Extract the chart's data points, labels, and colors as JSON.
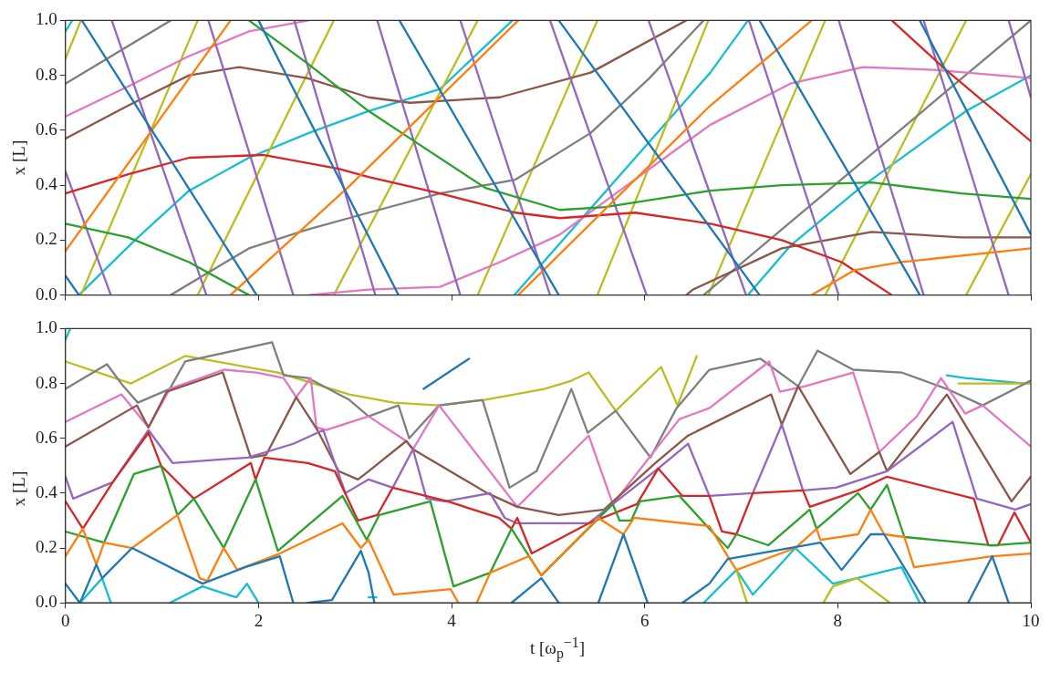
{
  "chart_data": [
    {
      "type": "line",
      "ylabel": "x [L]",
      "xlim": [
        0,
        10
      ],
      "ylim": [
        0,
        1
      ],
      "xticks": [
        0,
        2,
        4,
        6,
        8,
        10
      ],
      "yticks": [
        {
          "value": 0,
          "label": "0.0"
        },
        {
          "value": 0.2,
          "label": "0.2"
        },
        {
          "value": 0.4,
          "label": "0.4"
        },
        {
          "value": 0.6,
          "label": "0.6"
        },
        {
          "value": 0.8,
          "label": "0.8"
        },
        {
          "value": 1,
          "label": "1.0"
        }
      ],
      "tick_labels": "y",
      "series": [
        {
          "color": "#1f77b4",
          "x": [
            0,
            0.14
          ],
          "values": [
            0.07,
            0
          ]
        },
        {
          "color": "#1f77b4",
          "x": [
            0.17,
            1.98
          ],
          "values": [
            1,
            0
          ]
        },
        {
          "color": "#1f77b4",
          "x": [
            2.0,
            3.45
          ],
          "values": [
            1,
            0
          ]
        },
        {
          "color": "#1f77b4",
          "x": [
            3.46,
            5.11
          ],
          "values": [
            1,
            0
          ]
        },
        {
          "color": "#1f77b4",
          "x": [
            5.11,
            7.19
          ],
          "values": [
            1,
            0
          ]
        },
        {
          "color": "#1f77b4",
          "x": [
            7.19,
            8.85
          ],
          "values": [
            1,
            0
          ]
        },
        {
          "color": "#1f77b4",
          "x": [
            8.85,
            10
          ],
          "values": [
            1,
            0.22
          ]
        },
        {
          "color": "#ff7f0e",
          "x": [
            0,
            1.71
          ],
          "values": [
            0.16,
            1
          ]
        },
        {
          "color": "#ff7f0e",
          "x": [
            1.71,
            2.95,
            4.69
          ],
          "values": [
            0,
            0.4,
            1
          ]
        },
        {
          "color": "#ff7f0e",
          "x": [
            4.69,
            6.68,
            7.73
          ],
          "values": [
            0,
            0.69,
            1
          ]
        },
        {
          "color": "#ff7f0e",
          "x": [
            7.73,
            8.17,
            8.66,
            10
          ],
          "values": [
            0,
            0.09,
            0.12,
            0.17
          ]
        },
        {
          "color": "#2ca02c",
          "x": [
            0,
            0.65,
            1.28,
            1.9
          ],
          "values": [
            0.26,
            0.21,
            0.12,
            0
          ]
        },
        {
          "color": "#2ca02c",
          "x": [
            1.9,
            2.52,
            3.14,
            3.57,
            4.35,
            5.12,
            5.59,
            6.68,
            7.42,
            8.35,
            9.28,
            10
          ],
          "values": [
            1,
            0.84,
            0.67,
            0.57,
            0.39,
            0.31,
            0.32,
            0.38,
            0.4,
            0.41,
            0.37,
            0.35
          ]
        },
        {
          "color": "#d62728",
          "x": [
            0,
            0.65,
            1.28,
            2.05,
            2.83,
            3.14,
            3.88,
            4.66,
            5.12,
            5.9,
            6.68,
            7.42,
            8.04,
            8.56
          ],
          "values": [
            0.37,
            0.44,
            0.5,
            0.51,
            0.46,
            0.43,
            0.37,
            0.3,
            0.28,
            0.3,
            0.26,
            0.2,
            0.12,
            0
          ]
        },
        {
          "color": "#d62728",
          "x": [
            8.56,
            9.12,
            10
          ],
          "values": [
            1,
            0.82,
            0.56
          ]
        },
        {
          "color": "#9467bd",
          "x": [
            0,
            0.47
          ],
          "values": [
            0.45,
            0
          ]
        },
        {
          "color": "#9467bd",
          "x": [
            0.48,
            1.46
          ],
          "values": [
            1,
            0
          ]
        },
        {
          "color": "#9467bd",
          "x": [
            1.48,
            2.36
          ],
          "values": [
            1,
            0
          ]
        },
        {
          "color": "#9467bd",
          "x": [
            2.37,
            3.21
          ],
          "values": [
            1,
            0
          ]
        },
        {
          "color": "#9467bd",
          "x": [
            3.23,
            4.09
          ],
          "values": [
            1,
            0
          ]
        },
        {
          "color": "#9467bd",
          "x": [
            4.09,
            5.02
          ],
          "values": [
            1,
            0
          ]
        },
        {
          "color": "#9467bd",
          "x": [
            5.02,
            6.02
          ],
          "values": [
            1,
            0
          ]
        },
        {
          "color": "#9467bd",
          "x": [
            6.04,
            7.05
          ],
          "values": [
            1,
            0
          ]
        },
        {
          "color": "#9467bd",
          "x": [
            7.08,
            8.01
          ],
          "values": [
            1,
            0
          ]
        },
        {
          "color": "#9467bd",
          "x": [
            8.01,
            8.89
          ],
          "values": [
            1,
            0
          ]
        },
        {
          "color": "#9467bd",
          "x": [
            8.89,
            9.77
          ],
          "values": [
            1,
            0
          ]
        },
        {
          "color": "#9467bd",
          "x": [
            9.77,
            10
          ],
          "values": [
            1,
            0.72
          ]
        },
        {
          "color": "#8c564b",
          "x": [
            0,
            0.65,
            1.28,
            1.8,
            2.5,
            3.14,
            3.57,
            4.5,
            5.44,
            6.43
          ],
          "values": [
            0.57,
            0.69,
            0.8,
            0.83,
            0.79,
            0.72,
            0.7,
            0.72,
            0.81,
            1
          ]
        },
        {
          "color": "#8c564b",
          "x": [
            6.43,
            6.5,
            7.42,
            8.35,
            9.28,
            10
          ],
          "values": [
            0,
            0.02,
            0.17,
            0.23,
            0.21,
            0.21
          ]
        },
        {
          "color": "#e377c2",
          "x": [
            0,
            0.65,
            1.28,
            1.9,
            2.52
          ],
          "values": [
            0.65,
            0.76,
            0.87,
            0.96,
            1
          ]
        },
        {
          "color": "#e377c2",
          "x": [
            2.52,
            3.14,
            3.88,
            4.5,
            5.12,
            5.74,
            6.68,
            7.51,
            8.26,
            9.0,
            10
          ],
          "values": [
            0,
            0.02,
            0.03,
            0.12,
            0.22,
            0.38,
            0.62,
            0.77,
            0.83,
            0.82,
            0.79
          ]
        },
        {
          "color": "#7f7f7f",
          "x": [
            0,
            1.09
          ],
          "values": [
            0.77,
            1
          ]
        },
        {
          "color": "#7f7f7f",
          "x": [
            1.09,
            1.9,
            2.52,
            3.14,
            3.88,
            4.66,
            5.44,
            6.05,
            6.61
          ],
          "values": [
            0,
            0.17,
            0.24,
            0.3,
            0.37,
            0.42,
            0.59,
            0.79,
            1
          ]
        },
        {
          "color": "#7f7f7f",
          "x": [
            6.61,
            10
          ],
          "values": [
            0,
            1
          ]
        },
        {
          "color": "#bcbd22",
          "x": [
            0,
            0.16
          ],
          "values": [
            0.86,
            1
          ]
        },
        {
          "color": "#bcbd22",
          "x": [
            0.16,
            1.37
          ],
          "values": [
            0,
            1
          ]
        },
        {
          "color": "#bcbd22",
          "x": [
            1.37,
            2.78
          ],
          "values": [
            0,
            1
          ]
        },
        {
          "color": "#bcbd22",
          "x": [
            2.78,
            4.27
          ],
          "values": [
            0,
            1
          ]
        },
        {
          "color": "#bcbd22",
          "x": [
            4.27,
            5.51
          ],
          "values": [
            0,
            1
          ]
        },
        {
          "color": "#bcbd22",
          "x": [
            5.51,
            6.66
          ],
          "values": [
            0,
            1
          ]
        },
        {
          "color": "#bcbd22",
          "x": [
            6.66,
            7.87
          ],
          "values": [
            0,
            1
          ]
        },
        {
          "color": "#bcbd22",
          "x": [
            7.87,
            9.33
          ],
          "values": [
            0,
            1
          ]
        },
        {
          "color": "#bcbd22",
          "x": [
            9.33,
            10
          ],
          "values": [
            0,
            0.44
          ]
        },
        {
          "color": "#17becf",
          "x": [
            0,
            0.07
          ],
          "values": [
            0.96,
            1
          ]
        },
        {
          "color": "#17becf",
          "x": [
            0.14,
            0.72,
            1.28,
            1.9,
            2.52,
            3.14,
            3.88,
            4.63
          ],
          "values": [
            0,
            0.2,
            0.38,
            0.5,
            0.59,
            0.67,
            0.75,
            1
          ]
        },
        {
          "color": "#17becf",
          "x": [
            4.65,
            6.68,
            7.07
          ],
          "values": [
            0,
            0.81,
            1
          ]
        },
        {
          "color": "#17becf",
          "x": [
            7.07,
            7.51,
            8.23,
            9.33,
            10
          ],
          "values": [
            0,
            0.18,
            0.39,
            0.67,
            0.8
          ]
        }
      ]
    },
    {
      "type": "line",
      "xlabel": "t [ω$_{p}$$^{−1}$]",
      "ylabel": "x [L]",
      "xlim": [
        0,
        10
      ],
      "ylim": [
        0,
        1
      ],
      "xticks": [
        0,
        2,
        4,
        6,
        8,
        10
      ],
      "yticks": [
        {
          "value": 0,
          "label": "0.0"
        },
        {
          "value": 0.2,
          "label": "0.2"
        },
        {
          "value": 0.4,
          "label": "0.4"
        },
        {
          "value": 0.6,
          "label": "0.6"
        },
        {
          "value": 0.8,
          "label": "0.8"
        },
        {
          "value": 1,
          "label": "1.0"
        }
      ],
      "series": [
        {
          "color": "#1f77b4",
          "x": [
            0,
            0.15,
            0.32,
            0.38,
            0.69,
            1.42,
            1.86,
            2.22,
            2.36
          ],
          "values": [
            0.07,
            0,
            0.14,
            0.09,
            0.2,
            0.07,
            0.13,
            0.17,
            0
          ]
        },
        {
          "color": "#1f77b4",
          "x": [
            2.51,
            2.76,
            3.06,
            3.14,
            3.2
          ],
          "values": [
            0,
            0.01,
            0.19,
            0.11,
            0
          ]
        },
        {
          "color": "#1f77b4",
          "x": [
            3.71,
            4.18
          ],
          "values": [
            0.78,
            0.89
          ]
        },
        {
          "color": "#1f77b4",
          "x": [
            4.62,
            4.93,
            5.11
          ],
          "values": [
            0,
            0.09,
            0
          ]
        },
        {
          "color": "#1f77b4",
          "x": [
            5.52,
            5.78,
            6.03
          ],
          "values": [
            0,
            0.25,
            0
          ]
        },
        {
          "color": "#1f77b4",
          "x": [
            6.39,
            6.67,
            6.86,
            7.82,
            8.04,
            8.34,
            8.48,
            8.91
          ],
          "values": [
            0,
            0.07,
            0.16,
            0.22,
            0.12,
            0.25,
            0.25,
            0
          ]
        },
        {
          "color": "#1f77b4",
          "x": [
            9.35,
            9.6,
            9.77
          ],
          "values": [
            0,
            0.17,
            0
          ]
        },
        {
          "color": "#ff7f0e",
          "x": [
            0,
            0.18,
            0.32,
            0.4,
            0.69,
            1.16,
            1.39,
            1.47,
            1.64,
            1.78,
            2.22,
            2.87,
            3.06,
            3.14,
            3.4,
            3.99,
            4.07
          ],
          "values": [
            0.17,
            0.27,
            0.14,
            0.22,
            0.2,
            0.32,
            0.09,
            0.08,
            0.2,
            0.12,
            0.18,
            0.29,
            0.2,
            0.23,
            0.03,
            0.05,
            0
          ]
        },
        {
          "color": "#ff7f0e",
          "x": [
            4.26,
            4.4,
            4.8,
            4.93,
            5.52,
            5.78,
            5.89,
            6.67,
            6.86,
            6.95,
            7.56,
            7.78,
            7.82,
            8.21,
            8.34,
            8.48,
            8.69,
            8.79,
            9.6,
            10
          ],
          "values": [
            0,
            0.11,
            0.17,
            0.1,
            0.31,
            0.25,
            0.31,
            0.28,
            0.17,
            0.12,
            0.2,
            0.27,
            0.23,
            0.25,
            0.34,
            0.25,
            0.24,
            0.13,
            0.17,
            0.18
          ]
        },
        {
          "color": "#2ca02c",
          "x": [
            0,
            0.4,
            0.71,
            0.99,
            1.16,
            1.33,
            1.64,
            1.97,
            2.2,
            2.87,
            3.12,
            3.25,
            3.78,
            4.02,
            4.4,
            4.62,
            4.93,
            5.67,
            5.74,
            5.86,
            5.95,
            6.36,
            6.67,
            6.86,
            6.95,
            7.28,
            7.71,
            7.78,
            8.21,
            8.34,
            8.51,
            8.69,
            9.6,
            10
          ],
          "values": [
            0.26,
            0.22,
            0.47,
            0.5,
            0.32,
            0.38,
            0.2,
            0.45,
            0.19,
            0.39,
            0.23,
            0.32,
            0.37,
            0.06,
            0.11,
            0.27,
            0.1,
            0.36,
            0.3,
            0.3,
            0.37,
            0.39,
            0.27,
            0.2,
            0.25,
            0.21,
            0.34,
            0.27,
            0.4,
            0.34,
            0.43,
            0.24,
            0.21,
            0.22
          ]
        },
        {
          "color": "#d62728",
          "x": [
            0,
            0.18,
            0.49,
            0.86,
            0.99,
            1.33,
            1.92,
            1.97,
            2.06,
            2.51,
            2.79,
            3.03,
            3.23,
            3.39,
            3.96,
            4.49,
            4.62,
            4.68,
            4.83,
            5.42,
            5.92,
            6.14,
            6.39,
            6.67,
            6.8,
            6.95,
            7.12,
            7.64,
            7.71,
            8.21,
            8.51,
            9.41,
            9.56,
            9.66,
            9.83,
            10
          ],
          "values": [
            0.37,
            0.27,
            0.44,
            0.62,
            0.5,
            0.38,
            0.51,
            0.45,
            0.53,
            0.51,
            0.48,
            0.3,
            0.32,
            0.42,
            0.37,
            0.31,
            0.27,
            0.31,
            0.18,
            0.29,
            0.36,
            0.49,
            0.39,
            0.39,
            0.26,
            0.25,
            0.4,
            0.41,
            0.35,
            0.41,
            0.46,
            0.38,
            0.21,
            0.21,
            0.33,
            0.22
          ]
        },
        {
          "color": "#9467bd",
          "x": [
            0,
            0.08,
            0.49,
            0.86,
            1.11,
            1.89,
            2.36,
            2.67,
            2.9,
            3.14,
            3.39,
            3.6,
            3.74,
            3.93,
            4.4,
            4.55,
            4.68,
            5.42,
            5.67,
            6.14,
            6.45,
            6.67,
            7.12,
            7.42,
            7.64,
            7.98,
            8.51,
            9.19,
            9.44,
            9.84,
            10
          ],
          "values": [
            0.46,
            0.38,
            0.44,
            0.63,
            0.51,
            0.53,
            0.58,
            0.63,
            0.4,
            0.45,
            0.42,
            0.56,
            0.38,
            0.37,
            0.4,
            0.31,
            0.29,
            0.29,
            0.36,
            0.49,
            0.58,
            0.39,
            0.4,
            0.65,
            0.41,
            0.42,
            0.48,
            0.66,
            0.38,
            0.34,
            0.36
          ]
        },
        {
          "color": "#8c564b",
          "x": [
            0,
            0.74,
            0.86,
            1.05,
            1.63,
            1.92,
            2.08,
            2.39,
            2.61,
            2.83,
            3.03,
            3.14,
            3.53,
            3.6,
            4.37,
            4.68,
            5.11,
            5.58,
            6.11,
            6.45,
            7.31,
            7.42,
            7.59,
            8.13,
            8.43,
            8.51,
            9.13,
            9.8,
            10
          ],
          "values": [
            0.57,
            0.72,
            0.64,
            0.77,
            0.84,
            0.53,
            0.54,
            0.75,
            0.63,
            0.48,
            0.45,
            0.48,
            0.59,
            0.56,
            0.4,
            0.35,
            0.32,
            0.34,
            0.51,
            0.61,
            0.76,
            0.65,
            0.79,
            0.47,
            0.55,
            0.48,
            0.76,
            0.37,
            0.46
          ]
        },
        {
          "color": "#e377c2",
          "x": [
            0,
            0.58,
            0.86,
            1.08,
            1.64,
            1.98,
            2.26,
            2.39,
            2.54,
            2.6,
            2.7,
            3.14,
            3.53,
            3.6,
            3.87,
            4.68,
            5.42,
            5.67,
            6.36,
            6.67,
            7.29,
            7.4,
            7.66,
            8.16,
            8.43,
            8.82,
            9.07,
            9.32,
            9.5,
            10
          ],
          "values": [
            0.66,
            0.76,
            0.64,
            0.78,
            0.85,
            0.84,
            0.82,
            0.75,
            0.82,
            0.64,
            0.63,
            0.68,
            0.59,
            0.56,
            0.72,
            0.35,
            0.61,
            0.36,
            0.67,
            0.71,
            0.88,
            0.77,
            0.79,
            0.84,
            0.55,
            0.68,
            0.82,
            0.69,
            0.72,
            0.57
          ]
        },
        {
          "color": "#7f7f7f",
          "x": [
            0,
            0.43,
            0.6,
            0.75,
            1.08,
            1.24,
            2.14,
            2.26,
            2.51,
            2.94,
            3.14,
            3.45,
            3.56,
            3.87,
            4.32,
            4.6,
            4.88,
            5.24,
            5.41,
            5.7,
            6.06,
            6.33,
            6.67,
            7.2,
            7.59,
            7.79,
            8.16,
            8.66,
            9.13,
            9.5,
            10
          ],
          "values": [
            0.78,
            0.87,
            0.79,
            0.73,
            0.78,
            0.88,
            0.95,
            0.83,
            0.82,
            0.74,
            0.68,
            0.72,
            0.6,
            0.72,
            0.74,
            0.42,
            0.48,
            0.78,
            0.62,
            0.7,
            0.53,
            0.71,
            0.85,
            0.89,
            0.79,
            0.92,
            0.85,
            0.84,
            0.78,
            0.72,
            0.81
          ]
        },
        {
          "color": "#bcbd22",
          "x": [
            0,
            0.68,
            1.24,
            2.2,
            2.94,
            3.4,
            3.87,
            4.34,
            4.96,
            5.24,
            5.42,
            5.7,
            6.17,
            6.34,
            6.54
          ],
          "values": [
            0.88,
            0.8,
            0.9,
            0.84,
            0.76,
            0.73,
            0.72,
            0.74,
            0.78,
            0.81,
            0.84,
            0.7,
            0.86,
            0.72,
            0.9
          ]
        },
        {
          "color": "#bcbd22",
          "x": [
            6.95,
            7.06
          ],
          "values": [
            0.12,
            0
          ]
        },
        {
          "color": "#bcbd22",
          "x": [
            7.85,
            7.95,
            8.2,
            8.54
          ],
          "values": [
            0,
            0.06,
            0.09,
            0
          ]
        },
        {
          "color": "#bcbd22",
          "x": [
            9.25,
            10
          ],
          "values": [
            0.8,
            0.8
          ]
        },
        {
          "color": "#17becf",
          "x": [
            0,
            0.05
          ],
          "values": [
            0.96,
            1
          ]
        },
        {
          "color": "#17becf",
          "x": [
            0.15,
            0.38,
            0.47
          ],
          "values": [
            0,
            0.09,
            0
          ]
        },
        {
          "color": "#17becf",
          "x": [
            1.08,
            1.42,
            1.77,
            1.88,
            2.0
          ],
          "values": [
            0,
            0.06,
            0.02,
            0.07,
            0
          ]
        },
        {
          "color": "#17becf",
          "x": [
            3.14,
            3.22
          ],
          "values": [
            0.02,
            0.02
          ]
        },
        {
          "color": "#17becf",
          "x": [
            6.61,
            6.95,
            7.12,
            7.56,
            7.95,
            8.2,
            8.66,
            8.85
          ],
          "values": [
            0,
            0.12,
            0.03,
            0.2,
            0.07,
            0.09,
            0.13,
            0
          ]
        },
        {
          "color": "#17becf",
          "x": [
            9.13,
            9.32,
            9.94,
            10
          ],
          "values": [
            0.83,
            0.82,
            0.8,
            0.81
          ]
        }
      ]
    }
  ]
}
